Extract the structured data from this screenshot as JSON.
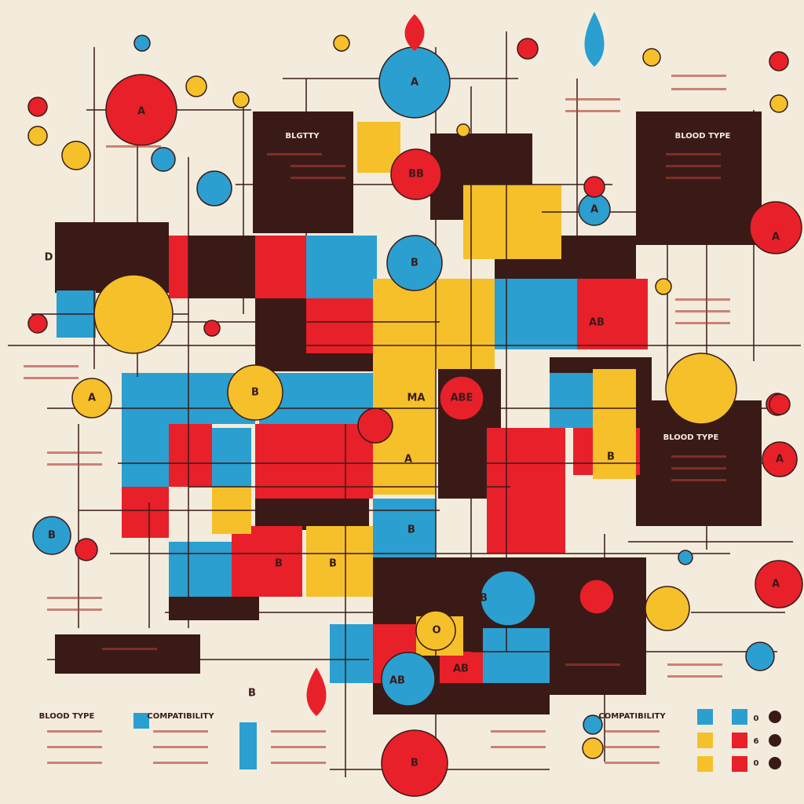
{
  "panels": [
    {
      "title": "BLGTTY"
    },
    {
      "title": "BLOOD TYPE"
    },
    {
      "title": "BLOOD TYPE"
    }
  ],
  "legends": [
    {
      "title": "BLOOD TYPE"
    },
    {
      "title": "COMPATIBILITY"
    },
    {
      "title": "COMPATIBILITY"
    }
  ],
  "nodes": [
    "A",
    "A",
    "A",
    "BB",
    "B",
    "A",
    "AB",
    "A",
    "B",
    "MA",
    "ABE",
    "A",
    "B",
    "A",
    "B",
    "B",
    "B",
    "B",
    "B",
    "A",
    "AB",
    "AB",
    "B",
    "B",
    "O",
    "D"
  ],
  "marks": [
    "0",
    "6",
    "0"
  ]
}
